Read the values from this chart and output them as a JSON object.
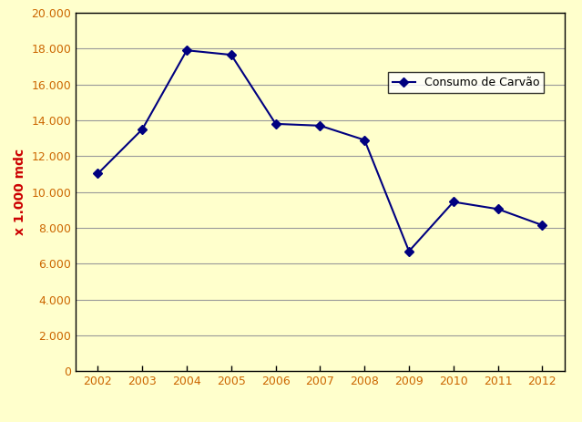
{
  "years": [
    2002,
    2003,
    2004,
    2005,
    2006,
    2007,
    2008,
    2009,
    2010,
    2011,
    2012
  ],
  "values": [
    11026,
    13500,
    17900,
    17650,
    13800,
    13700,
    12900,
    6700,
    9450,
    9050,
    8150
  ],
  "line_color": "#000080",
  "marker": "D",
  "marker_size": 5,
  "ylabel": "x 1.000 mdc",
  "ylabel_color": "#cc0000",
  "legend_label": "Consumo de Carvão",
  "ylim": [
    0,
    20000
  ],
  "yticks": [
    0,
    2000,
    4000,
    6000,
    8000,
    10000,
    12000,
    14000,
    16000,
    18000,
    20000
  ],
  "background_color": "#ffffcc",
  "grid_color": "#999999",
  "figure_bg": "#ffffcc",
  "tick_color": "#cc6600",
  "tick_fontsize": 9,
  "xlabel_fontsize": 9
}
